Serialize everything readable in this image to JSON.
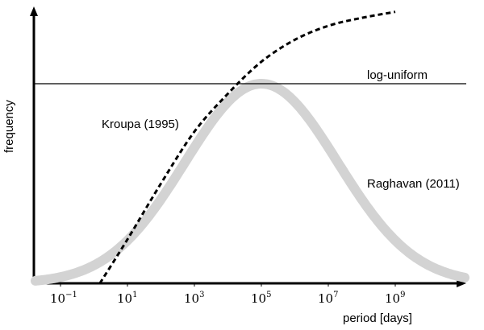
{
  "chart_data": {
    "type": "line",
    "title": "",
    "xlabel": "period [days]",
    "ylabel": "frequency",
    "x_scale": "log",
    "x_unit": "days",
    "xlim": [
      0.01,
      10000000000000.0
    ],
    "ylim": [
      0,
      1.3
    ],
    "grid": false,
    "legend": "none",
    "x_ticks": [
      {
        "base": "10",
        "exp": "−1",
        "value": 0.1
      },
      {
        "base": "10",
        "exp": "1",
        "value": 10
      },
      {
        "base": "10",
        "exp": "3",
        "value": 1000
      },
      {
        "base": "10",
        "exp": "5",
        "value": 100000
      },
      {
        "base": "10",
        "exp": "7",
        "value": 10000000
      },
      {
        "base": "10",
        "exp": "9",
        "value": 1000000000
      }
    ],
    "series": [
      {
        "name": "log-uniform",
        "style": "thin-solid",
        "color": "#000000",
        "points": [
          {
            "x": 0.01,
            "y": 1.0
          },
          {
            "x": 10000000000000.0,
            "y": 1.0
          }
        ]
      },
      {
        "name": "Raghavan (2011)",
        "style": "thick-gray",
        "color": "#d3d3d3",
        "distribution": "log-normal",
        "peak_period": 100000,
        "peak_y": 1.0,
        "sigma_log10": 2.28
      },
      {
        "name": "Kroupa (1995)",
        "style": "dashed",
        "color": "#000000",
        "points": [
          {
            "x": 1.5,
            "y": 0.0
          },
          {
            "x": 10,
            "y": 0.22
          },
          {
            "x": 100,
            "y": 0.5
          },
          {
            "x": 1000,
            "y": 0.76
          },
          {
            "x": 10000,
            "y": 0.95
          },
          {
            "x": 100000,
            "y": 1.11
          },
          {
            "x": 1000000,
            "y": 1.22
          },
          {
            "x": 10000000,
            "y": 1.29
          },
          {
            "x": 100000000,
            "y": 1.33
          },
          {
            "x": 1000000000,
            "y": 1.36
          }
        ]
      }
    ]
  }
}
